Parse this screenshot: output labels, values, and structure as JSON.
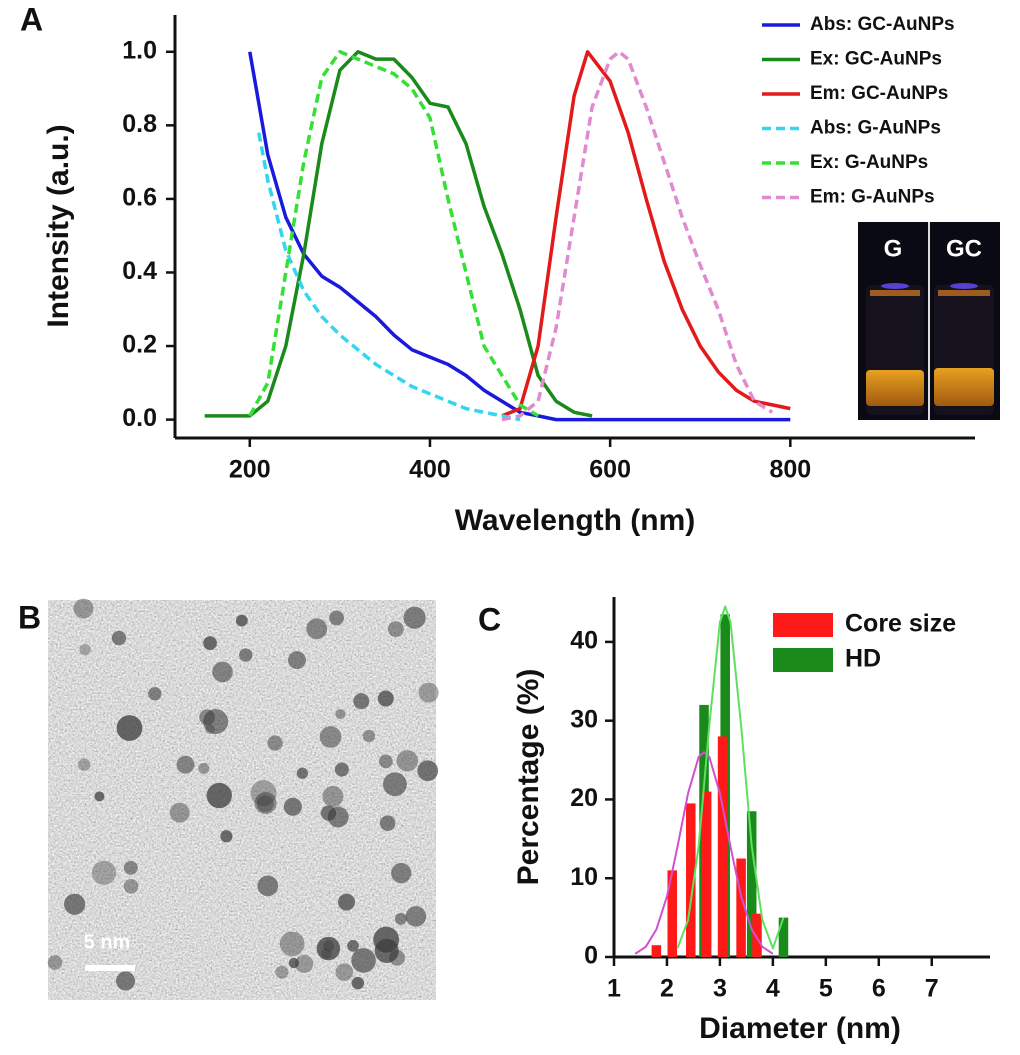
{
  "chart_data": [
    {
      "type": "line",
      "panel_label": "A",
      "xlabel": "Wavelength (nm)",
      "ylabel": "Intensity (a.u.)",
      "xlim": [
        117,
        1005
      ],
      "xticks": [
        200,
        400,
        600,
        800
      ],
      "ylim": [
        -0.05,
        1.1
      ],
      "yticks": [
        {
          "value": 0,
          "label": "0.0"
        },
        0.2,
        0.4,
        0.6,
        0.8,
        {
          "value": 1,
          "label": "1.0"
        }
      ],
      "legend": "upper right",
      "inset_labels": [
        "G",
        "GC"
      ],
      "series": [
        {
          "name": "Abs: GC-AuNPs",
          "color": "#1a1adb",
          "dashed": false,
          "x": [
            200,
            220,
            240,
            260,
            280,
            300,
            320,
            340,
            360,
            380,
            400,
            420,
            440,
            460,
            480,
            500,
            520,
            540,
            600,
            700,
            800
          ],
          "values": [
            1.0,
            0.72,
            0.55,
            0.45,
            0.39,
            0.36,
            0.32,
            0.28,
            0.23,
            0.19,
            0.17,
            0.15,
            0.12,
            0.08,
            0.05,
            0.02,
            0.01,
            0.0,
            0.0,
            0.0,
            0.0
          ]
        },
        {
          "name": "Ex: GC-AuNPs",
          "color": "#1a8a1a",
          "dashed": false,
          "x": [
            150,
            200,
            220,
            240,
            260,
            280,
            300,
            320,
            340,
            360,
            380,
            400,
            420,
            440,
            460,
            480,
            500,
            520,
            540,
            560,
            580
          ],
          "values": [
            0.01,
            0.01,
            0.05,
            0.2,
            0.45,
            0.75,
            0.95,
            1.0,
            0.98,
            0.98,
            0.93,
            0.86,
            0.85,
            0.75,
            0.58,
            0.45,
            0.3,
            0.12,
            0.05,
            0.02,
            0.01
          ]
        },
        {
          "name": "Em: GC-AuNPs",
          "color": "#e31a1a",
          "dashed": false,
          "x": [
            480,
            500,
            520,
            540,
            560,
            575,
            600,
            620,
            640,
            660,
            680,
            700,
            720,
            740,
            760,
            780,
            800
          ],
          "values": [
            0.01,
            0.03,
            0.2,
            0.55,
            0.88,
            1.0,
            0.92,
            0.78,
            0.6,
            0.43,
            0.3,
            0.2,
            0.13,
            0.08,
            0.05,
            0.04,
            0.03
          ]
        },
        {
          "name": "Abs: G-AuNPs",
          "color": "#33d6ee",
          "dashed": true,
          "x": [
            210,
            220,
            240,
            260,
            280,
            300,
            320,
            340,
            360,
            380,
            400,
            420,
            440,
            460,
            480,
            500
          ],
          "values": [
            0.78,
            0.65,
            0.46,
            0.35,
            0.28,
            0.23,
            0.19,
            0.15,
            0.12,
            0.09,
            0.07,
            0.05,
            0.03,
            0.02,
            0.01,
            0.0
          ]
        },
        {
          "name": "Ex: G-AuNPs",
          "color": "#33e033",
          "dashed": true,
          "x": [
            200,
            220,
            240,
            260,
            280,
            300,
            320,
            340,
            360,
            380,
            400,
            420,
            440,
            460,
            480,
            500,
            520
          ],
          "values": [
            0.01,
            0.1,
            0.4,
            0.7,
            0.93,
            1.0,
            0.98,
            0.96,
            0.94,
            0.9,
            0.82,
            0.6,
            0.4,
            0.2,
            0.12,
            0.04,
            0.01
          ]
        },
        {
          "name": "Em: G-AuNPs",
          "color": "#e08ad0",
          "dashed": true,
          "x": [
            480,
            500,
            520,
            540,
            560,
            580,
            600,
            610,
            620,
            640,
            660,
            680,
            700,
            720,
            740,
            760,
            780
          ],
          "values": [
            0.0,
            0.01,
            0.05,
            0.25,
            0.55,
            0.85,
            0.98,
            1.0,
            0.98,
            0.85,
            0.7,
            0.55,
            0.42,
            0.3,
            0.15,
            0.05,
            0.02
          ]
        }
      ]
    },
    {
      "type": "bar",
      "panel_label": "C",
      "xlabel": "Diameter (nm)",
      "ylabel": "Percentage (%)",
      "xlim": [
        1,
        8.1
      ],
      "xticks": [
        1,
        2,
        3,
        4,
        5,
        6,
        7
      ],
      "ylim": [
        0,
        45.7
      ],
      "yticks": [
        0,
        10,
        20,
        30,
        40
      ],
      "legend": "upper right",
      "series": [
        {
          "name": "HD",
          "color": "#1a8a1a",
          "style": "bar",
          "x": [
            2.7,
            3.1,
            3.6,
            4.2
          ],
          "values": [
            32,
            43.5,
            18.5,
            5
          ]
        },
        {
          "name": "Core size",
          "color": "#ff1a1a",
          "style": "bar",
          "x": [
            1.8,
            2.1,
            2.45,
            2.75,
            3.05,
            3.4,
            3.7
          ],
          "values": [
            1.5,
            11,
            19.5,
            21,
            28,
            12.5,
            5.5
          ]
        },
        {
          "color": "#d050d0",
          "style": "line",
          "x": [
            1.4,
            1.6,
            1.8,
            2.0,
            2.2,
            2.4,
            2.6,
            2.7,
            2.8,
            3.0,
            3.2,
            3.4,
            3.6,
            3.8,
            4.0
          ],
          "values": [
            0.4,
            1.3,
            3.5,
            7.7,
            14.0,
            20.8,
            25.4,
            26,
            25.4,
            20.8,
            14.0,
            7.7,
            3.5,
            1.3,
            0.4
          ]
        },
        {
          "color": "#5ee05e",
          "style": "line",
          "x": [
            2.2,
            2.4,
            2.6,
            2.8,
            3.0,
            3.1,
            3.2,
            3.4,
            3.6,
            3.8,
            4.0,
            4.2
          ],
          "values": [
            1.1,
            4.7,
            14.1,
            29.4,
            42.5,
            44.5,
            42.5,
            29.4,
            14.1,
            4.7,
            1.1,
            5
          ]
        }
      ]
    }
  ],
  "image_panel": {
    "panel_label": "B",
    "scale_bar_label": "5 nm"
  }
}
